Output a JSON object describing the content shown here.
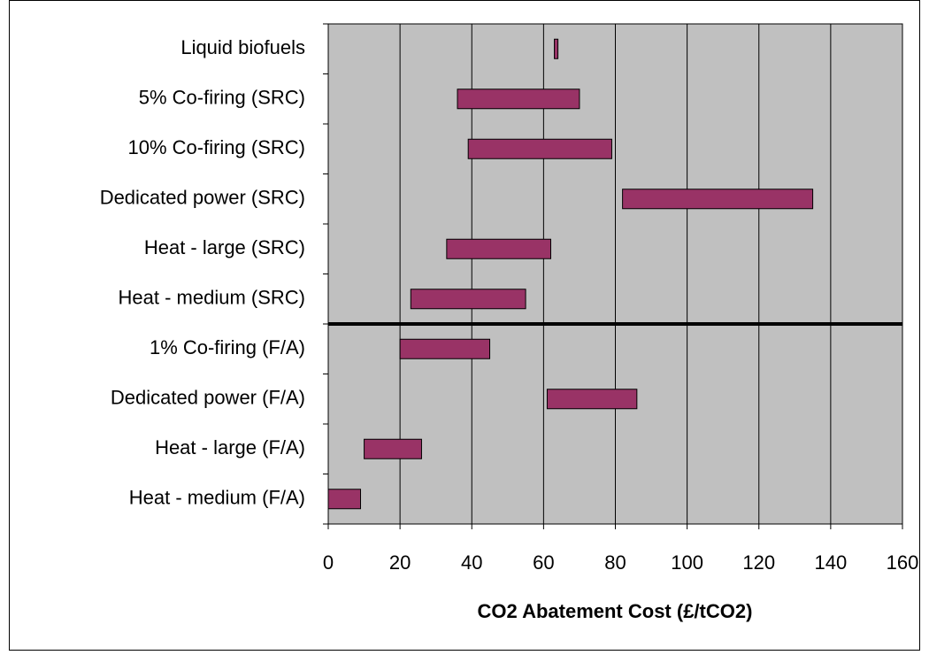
{
  "chart_data": {
    "type": "range_bar",
    "orientation": "horizontal",
    "x_label": "CO2 Abatement Cost (£/tCO2)",
    "categories": [
      "Liquid biofuels",
      "5% Co-firing (SRC)",
      "10% Co-firing (SRC)",
      "Dedicated power (SRC)",
      "Heat - large (SRC)",
      "Heat - medium (SRC)",
      "1% Co-firing (F/A)",
      "Dedicated power (F/A)",
      "Heat - large (F/A)",
      "Heat - medium (F/A)"
    ],
    "ranges": [
      [
        63,
        64
      ],
      [
        36,
        70
      ],
      [
        39,
        79
      ],
      [
        82,
        135
      ],
      [
        33,
        62
      ],
      [
        23,
        55
      ],
      [
        20,
        45
      ],
      [
        61,
        86
      ],
      [
        10,
        26
      ],
      [
        0,
        9
      ]
    ],
    "color": "#993366",
    "plot_background": "#c0c0c0",
    "xlim": [
      0,
      160
    ],
    "xticks": [
      0,
      20,
      40,
      60,
      80,
      100,
      120,
      140,
      160
    ],
    "grid": true
  }
}
